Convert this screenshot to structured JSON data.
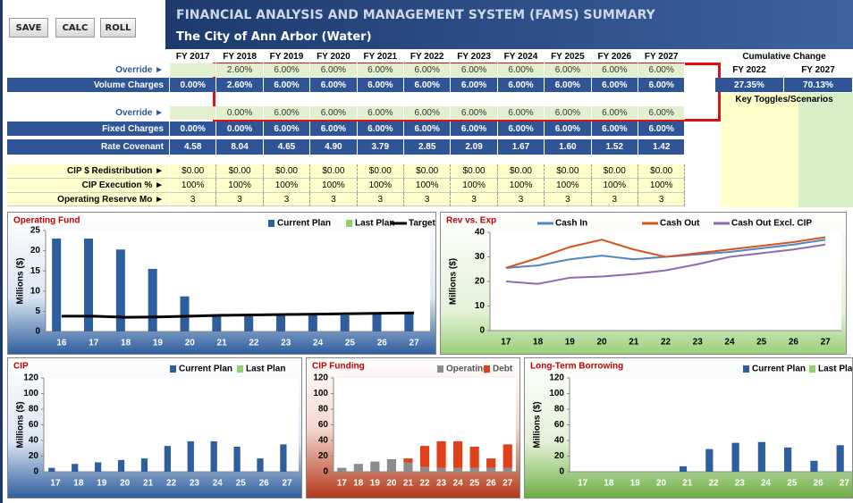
{
  "buttons": [
    "SAVE",
    "CALC",
    "ROLL"
  ],
  "header": {
    "title": "FINANCIAL ANALYSIS AND MANAGEMENT SYSTEM (FAMS) SUMMARY",
    "subtitle": "The City of Ann Arbor (Water)"
  },
  "table": {
    "columns": [
      "FY 2017",
      "FY 2018",
      "FY 2019",
      "FY 2020",
      "FY 2021",
      "FY 2022",
      "FY 2023",
      "FY 2024",
      "FY 2025",
      "FY 2026",
      "FY 2027"
    ],
    "rows": [
      {
        "label": "Override ►",
        "values": [
          null,
          "2.60%",
          "6.00%",
          "6.00%",
          "6.00%",
          "6.00%",
          "6.00%",
          "6.00%",
          "6.00%",
          "6.00%",
          "6.00%"
        ]
      },
      {
        "label": "Volume Charges",
        "values": [
          "0.00%",
          "2.60%",
          "6.00%",
          "6.00%",
          "6.00%",
          "6.00%",
          "6.00%",
          "6.00%",
          "6.00%",
          "6.00%",
          "6.00%"
        ]
      },
      {
        "label": "Override ►",
        "values": [
          null,
          "0.00%",
          "6.00%",
          "6.00%",
          "6.00%",
          "6.00%",
          "6.00%",
          "6.00%",
          "6.00%",
          "6.00%",
          "6.00%"
        ]
      },
      {
        "label": "Fixed Charges",
        "values": [
          "0.00%",
          "0.00%",
          "6.00%",
          "6.00%",
          "6.00%",
          "6.00%",
          "6.00%",
          "6.00%",
          "6.00%",
          "6.00%",
          "6.00%"
        ]
      },
      {
        "label": "Rate Covenant",
        "values": [
          "4.58",
          "8.04",
          "4.65",
          "4.90",
          "3.79",
          "2.85",
          "2.09",
          "1.67",
          "1.60",
          "1.52",
          "1.42"
        ]
      },
      {
        "label": "CIP $ Redistribution ►",
        "values": [
          "$0.00",
          "$0.00",
          "$0.00",
          "$0.00",
          "$0.00",
          "$0.00",
          "$0.00",
          "$0.00",
          "$0.00",
          "$0.00",
          "$0.00"
        ]
      },
      {
        "label": "CIP Execution % ►",
        "values": [
          "100%",
          "100%",
          "100%",
          "100%",
          "100%",
          "100%",
          "100%",
          "100%",
          "100%",
          "100%",
          "100%"
        ]
      },
      {
        "label": "Operating Reserve Mo ►",
        "values": [
          "3",
          "3",
          "3",
          "3",
          "3",
          "3",
          "3",
          "3",
          "3",
          "3",
          "3"
        ]
      }
    ],
    "cumulative": {
      "title": "Cumulative Change",
      "columns": [
        "FY 2022",
        "FY 2027"
      ],
      "values": [
        "27.35%",
        "70.13%"
      ]
    },
    "toggles_title": "Key Toggles/Scenarios"
  },
  "chart_data": [
    {
      "type": "bar",
      "title": "Operating Fund",
      "y_label": "Millions ($)",
      "categories": [
        "16",
        "17",
        "18",
        "19",
        "20",
        "21",
        "22",
        "23",
        "24",
        "25",
        "26",
        "27"
      ],
      "series": [
        {
          "name": "Current Plan",
          "color": "#2f5e9e",
          "values": [
            23,
            23,
            20.3,
            15.5,
            8.7,
            4,
            4,
            4,
            4,
            4,
            4.3,
            4.5
          ]
        },
        {
          "name": "Last Plan",
          "color": "#8fd16a",
          "values": [
            null,
            null,
            null,
            null,
            null,
            null,
            null,
            null,
            null,
            null,
            null,
            null
          ]
        },
        {
          "name": "Target",
          "color": "#000000",
          "type": "line",
          "values": [
            3.8,
            3.8,
            3.5,
            3.6,
            3.8,
            4,
            4.1,
            4.2,
            4.3,
            4.4,
            4.5,
            4.6
          ]
        }
      ],
      "ylim": [
        0,
        25
      ],
      "yticks": [
        0,
        5,
        10,
        15,
        20,
        25
      ]
    },
    {
      "type": "line",
      "title": "Rev vs. Exp",
      "y_label": "Millions ($)",
      "categories": [
        "17",
        "18",
        "19",
        "20",
        "21",
        "22",
        "23",
        "24",
        "25",
        "26",
        "27"
      ],
      "series": [
        {
          "name": "Cash In",
          "color": "#4f86c6",
          "values": [
            25.5,
            26.5,
            29,
            30.5,
            29,
            30,
            31,
            32,
            33.5,
            35,
            37
          ]
        },
        {
          "name": "Cash Out",
          "color": "#d9531e",
          "values": [
            25.5,
            29.5,
            34,
            37,
            33,
            30,
            31.5,
            33,
            34.5,
            36,
            38
          ]
        },
        {
          "name": "Cash Out Excl. CIP",
          "color": "#8e6bb5",
          "values": [
            20,
            19,
            21.5,
            22,
            23,
            24.5,
            27,
            30,
            31.5,
            33,
            35
          ]
        }
      ],
      "ylim": [
        0,
        40
      ],
      "yticks": [
        0,
        10,
        20,
        30,
        40
      ]
    },
    {
      "type": "bar",
      "title": "CIP",
      "y_label": "Millions ($)",
      "categories": [
        "17",
        "18",
        "19",
        "20",
        "21",
        "22",
        "23",
        "24",
        "25",
        "26",
        "27"
      ],
      "series": [
        {
          "name": "Current Plan",
          "color": "#2f5e9e",
          "values": [
            5,
            10,
            12,
            15,
            17,
            33,
            39,
            39,
            32,
            17,
            35
          ]
        },
        {
          "name": "Last Plan",
          "color": "#8fd16a",
          "values": [
            null,
            null,
            null,
            null,
            null,
            null,
            null,
            null,
            null,
            null,
            null
          ]
        }
      ],
      "ylim": [
        0,
        120
      ],
      "yticks": [
        0,
        20,
        40,
        60,
        80,
        100,
        120
      ]
    },
    {
      "type": "bar",
      "stacked": true,
      "title": "CIP Funding",
      "categories": [
        "17",
        "18",
        "19",
        "20",
        "21",
        "22",
        "23",
        "24",
        "25",
        "26",
        "27"
      ],
      "series": [
        {
          "name": "Operating",
          "color": "#8c8c8c",
          "values": [
            5,
            10,
            13,
            16,
            12,
            6,
            5,
            5,
            5,
            5,
            5
          ]
        },
        {
          "name": "Debt",
          "color": "#e0401a",
          "values": [
            0,
            0,
            0,
            0,
            5,
            27,
            34,
            34,
            27,
            12,
            30
          ]
        }
      ],
      "ylim": [
        0,
        120
      ],
      "yticks": [
        0,
        20,
        40,
        60,
        80,
        100,
        120
      ]
    },
    {
      "type": "bar",
      "title": "Long-Term Borrowing",
      "y_label": "Millions ($)",
      "categories": [
        "17",
        "18",
        "19",
        "20",
        "21",
        "22",
        "23",
        "24",
        "25",
        "26",
        "27"
      ],
      "series": [
        {
          "name": "Current Plan",
          "color": "#2f5e9e",
          "values": [
            0,
            0,
            0,
            0,
            7,
            29,
            37,
            38,
            31,
            14,
            34
          ]
        },
        {
          "name": "Last Plan",
          "color": "#8fd16a",
          "values": [
            null,
            null,
            null,
            null,
            null,
            null,
            null,
            null,
            null,
            null,
            null
          ]
        }
      ],
      "ylim": [
        0,
        120
      ],
      "yticks": [
        0,
        20,
        40,
        60,
        80,
        100,
        120
      ]
    }
  ]
}
